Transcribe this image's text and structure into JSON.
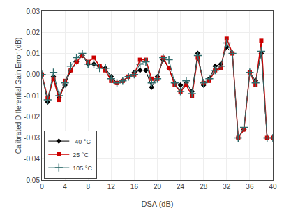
{
  "chart_data": {
    "type": "line",
    "x_label": "DSA (dB)",
    "y_label": "Calibrated Differential Gain Error (dB)",
    "x": [
      0,
      1,
      2,
      3,
      4,
      5,
      6,
      7,
      8,
      9,
      10,
      11,
      12,
      13,
      14,
      15,
      16,
      17,
      18,
      19,
      20,
      21,
      22,
      23,
      24,
      25,
      26,
      27,
      28,
      29,
      30,
      31,
      32,
      33,
      34,
      35,
      36,
      37,
      38,
      39,
      40
    ],
    "series": [
      {
        "name": "-40 °C",
        "color": "#000000",
        "marker": "diamond",
        "values": [
          0.0,
          -0.013,
          -0.001,
          -0.011,
          -0.005,
          0.002,
          0.006,
          0.009,
          0.005,
          0.005,
          0.004,
          0.003,
          -0.001,
          -0.004,
          -0.003,
          -0.001,
          0.001,
          0.002,
          0.002,
          -0.006,
          -0.001,
          0.007,
          0.003,
          -0.004,
          -0.005,
          -0.004,
          -0.008,
          0.01,
          -0.005,
          -0.002,
          0.004,
          0.005,
          0.013,
          0.01,
          -0.03,
          -0.026,
          0.001,
          -0.003,
          0.01,
          -0.03,
          -0.03
        ]
      },
      {
        "name": "25 °C",
        "color": "#cc0000",
        "marker": "square",
        "values": [
          0.0,
          -0.011,
          -0.002,
          -0.012,
          -0.003,
          0.002,
          0.006,
          0.009,
          0.006,
          0.008,
          0.004,
          0.002,
          -0.003,
          -0.004,
          -0.003,
          -0.001,
          0.0,
          0.007,
          0.007,
          -0.002,
          -0.002,
          0.008,
          0.003,
          -0.005,
          -0.008,
          -0.005,
          -0.01,
          0.008,
          -0.004,
          -0.003,
          0.002,
          0.003,
          0.017,
          0.01,
          -0.03,
          -0.026,
          0.001,
          -0.005,
          0.016,
          -0.03,
          -0.03
        ]
      },
      {
        "name": "105 °C",
        "color": "#2e6b6b",
        "marker": "plus",
        "values": [
          0.0,
          -0.012,
          0.001,
          -0.01,
          -0.004,
          0.004,
          0.008,
          0.01,
          0.005,
          0.005,
          0.003,
          0.003,
          -0.002,
          -0.004,
          -0.003,
          -0.001,
          0.0,
          0.005,
          0.006,
          -0.004,
          -0.002,
          0.008,
          0.007,
          -0.004,
          -0.008,
          -0.003,
          -0.009,
          0.009,
          -0.004,
          -0.002,
          0.002,
          0.004,
          0.015,
          0.01,
          -0.03,
          -0.025,
          0.001,
          -0.004,
          0.011,
          -0.03,
          -0.03
        ]
      }
    ],
    "xlim": [
      0,
      40
    ],
    "xticks": [
      0,
      4,
      8,
      12,
      16,
      20,
      24,
      28,
      32,
      36,
      40
    ],
    "ylim": [
      -0.05,
      0.03
    ],
    "yticks": [
      -0.05,
      -0.04,
      -0.03,
      -0.02,
      -0.01,
      {
        "value": 0,
        "label": "0.00"
      },
      0.01,
      0.02,
      0.03
    ],
    "legend": "lower left",
    "grid": true
  }
}
